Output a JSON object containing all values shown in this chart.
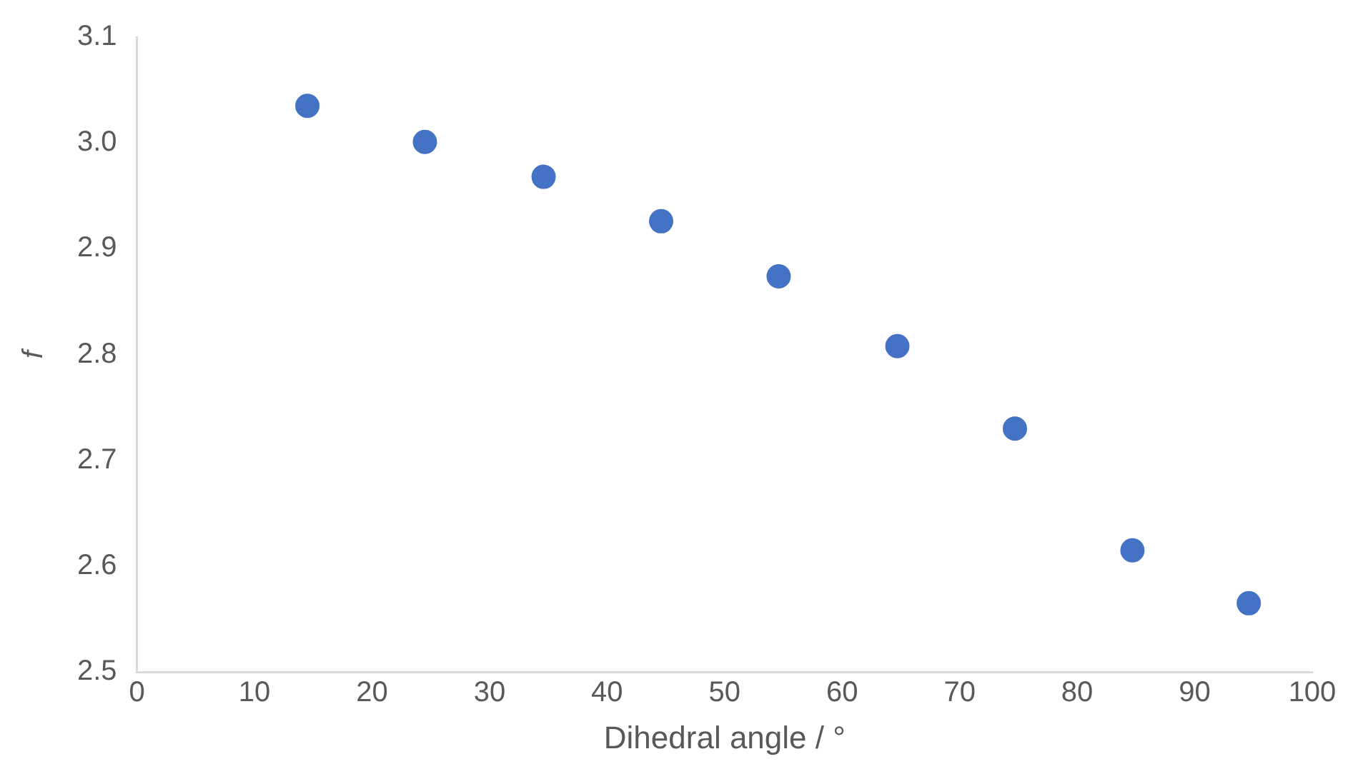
{
  "chart_data": {
    "type": "scatter",
    "xlabel": "Dihedral angle / °",
    "ylabel": "f",
    "marker": "circle",
    "x": [
      14.5,
      24.5,
      34.6,
      44.6,
      54.6,
      64.7,
      74.7,
      84.7,
      94.6
    ],
    "series": [
      {
        "color": "#4472c4",
        "values": [
          3.035,
          3.001,
          2.968,
          2.926,
          2.874,
          2.808,
          2.73,
          2.615,
          2.565
        ]
      }
    ],
    "xlim": [
      0,
      100
    ],
    "xticks": [
      0,
      10,
      20,
      30,
      40,
      50,
      60,
      70,
      80,
      90,
      100
    ],
    "ylim": [
      2.5,
      3.1
    ],
    "yticks": [
      {
        "value": 2.5,
        "label": "2.5"
      },
      {
        "value": 2.6,
        "label": "2.6"
      },
      {
        "value": 2.7,
        "label": "2.7"
      },
      {
        "value": 2.8,
        "label": "2.8"
      },
      {
        "value": 2.9,
        "label": "2.9"
      },
      {
        "value": 3.0,
        "label": "3.0"
      },
      {
        "value": 3.1,
        "label": "3.1"
      }
    ]
  }
}
